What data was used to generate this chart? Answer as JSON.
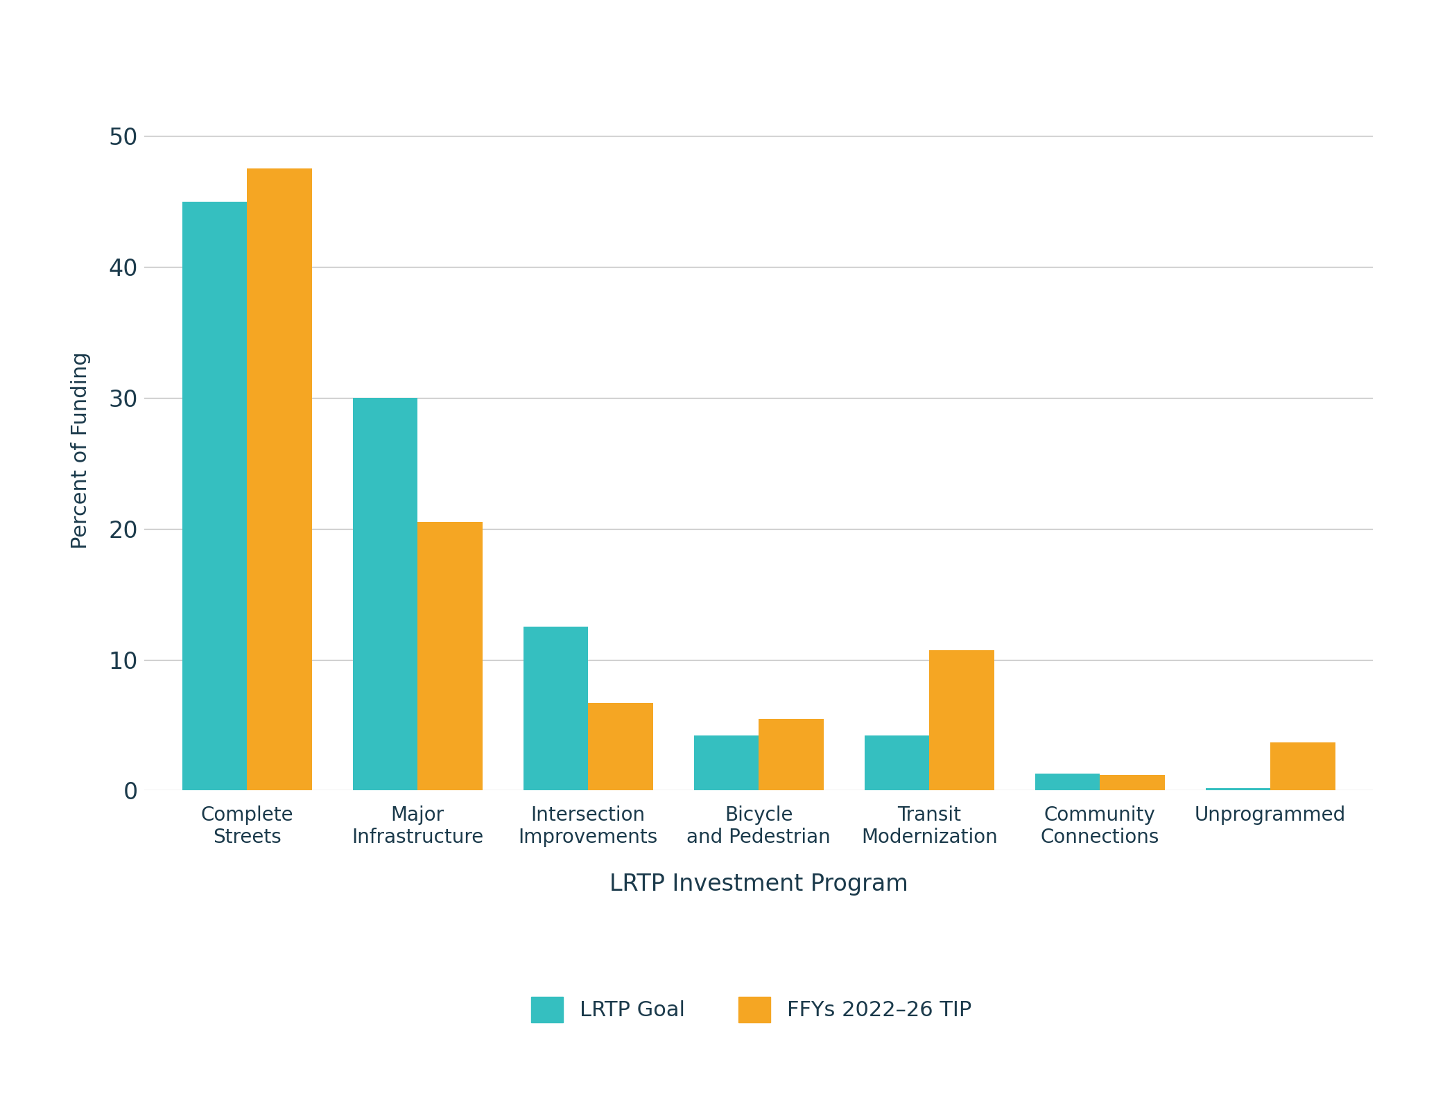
{
  "categories": [
    "Complete\nStreets",
    "Major\nInfrastructure",
    "Intersection\nImprovements",
    "Bicycle\nand Pedestrian",
    "Transit\nModernization",
    "Community\nConnections",
    "Unprogrammed"
  ],
  "lrtp_goal": [
    45.0,
    30.0,
    12.5,
    4.2,
    4.2,
    1.3,
    0.2
  ],
  "tip_values": [
    47.5,
    20.5,
    6.7,
    5.5,
    10.7,
    1.2,
    3.7
  ],
  "lrtp_color": "#35BFC0",
  "tip_color": "#F5A623",
  "ylabel": "Percent of Funding",
  "xlabel": "LRTP Investment Program",
  "ylim": [
    0,
    52
  ],
  "yticks": [
    0,
    10,
    20,
    30,
    40,
    50
  ],
  "legend_lrtp": "LRTP Goal",
  "legend_tip": "FFYs 2022–26 TIP",
  "background_color": "#ffffff",
  "grid_color": "#c0c0c0",
  "tick_color": "#1b3a4b",
  "label_color": "#1b3a4b",
  "bar_width": 0.38,
  "axis_label_fontsize": 22,
  "tick_fontsize": 24,
  "legend_fontsize": 22,
  "xlabel_fontsize": 24
}
